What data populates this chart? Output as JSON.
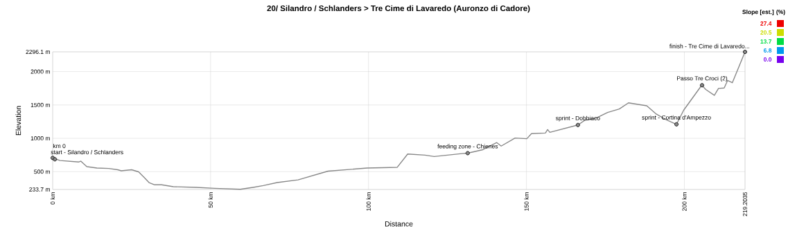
{
  "chart_data": {
    "type": "line",
    "title": "20/ Silandro / Schlanders > Tre Cime di Lavaredo (Auronzo di Cadore)",
    "xlabel": "Distance",
    "ylabel": "Elevation",
    "clabel": "Slope [est.] (%)",
    "clim": [
      0,
      27.4
    ],
    "cticks": [
      {
        "value": 0,
        "label": "0.0"
      },
      {
        "value": 6.8,
        "label": "6.8"
      },
      {
        "value": 13.7,
        "label": "13.7"
      },
      {
        "value": 20.5,
        "label": "20.5"
      },
      {
        "value": 27.4,
        "label": "27.4"
      }
    ],
    "xlim": [
      0,
      219.2035
    ],
    "ylim": [
      233.7,
      2296.1
    ],
    "xticks": [
      {
        "value": 0,
        "label": "0 km"
      },
      {
        "value": 50,
        "label": "50 km"
      },
      {
        "value": 100,
        "label": "100 km"
      },
      {
        "value": 150,
        "label": "150 km"
      },
      {
        "value": 200,
        "label": "200 km"
      },
      219.2035
    ],
    "yticks": [
      {
        "value": 233.7,
        "label": "233.7 m"
      },
      {
        "value": 500,
        "label": "500 m"
      },
      {
        "value": 1000,
        "label": "1000 m"
      },
      {
        "value": 1500,
        "label": "1500 m"
      },
      {
        "value": 2000,
        "label": "2000 m"
      },
      {
        "value": 2296.1,
        "label": "2296.1 m"
      }
    ],
    "grid": true,
    "series": [
      {
        "color": "#888888",
        "marker": "none",
        "x": [
          0,
          2.3,
          8.2,
          8.9,
          10.8,
          14.0,
          17.7,
          20.6,
          21.7,
          25.0,
          27.2,
          29.0,
          30.5,
          32.3,
          34.5,
          38.2,
          45.5,
          51.3,
          59.4,
          63.8,
          66.7,
          71.1,
          77.7,
          87.2,
          99.6,
          109.1,
          112.4,
          117.9,
          120.8,
          129.6,
          131.4,
          136.2,
          140.6,
          142.0,
          146.4,
          150.1,
          151.6,
          156.0,
          156.7,
          157.4,
          166.3,
          168.4,
          172.0,
          175.7,
          179.4,
          182.3,
          188.1,
          191.1,
          194.0,
          197.5,
          199.8,
          205.5,
          206.8,
          209.5,
          210.8,
          212.6,
          213.7,
          215.2,
          219.2035
        ],
        "values": [
          705,
          668,
          645,
          658,
          576,
          555,
          549,
          529,
          514,
          529,
          498,
          412,
          337,
          303,
          303,
          275,
          265,
          251,
          236,
          268,
          292,
          337,
          378,
          508,
          555,
          566,
          765,
          748,
          727,
          771,
          778,
          830,
          936,
          884,
          1004,
          994,
          1070,
          1080,
          1131,
          1090,
          1200,
          1269,
          1303,
          1388,
          1439,
          1532,
          1488,
          1364,
          1285,
          1210,
          1423,
          1796,
          1731,
          1645,
          1748,
          1755,
          1868,
          1834,
          2296.1
        ]
      },
      {
        "type": "scatter",
        "color": "#888888",
        "marker": "circle",
        "x": [
          0,
          0.7,
          131.4,
          166.3,
          197.5,
          205.6,
          219.2035
        ],
        "values": [
          707,
          686,
          778,
          1200,
          1210,
          1796,
          2296.1
        ]
      }
    ],
    "annotations": [
      {
        "text": "start - Silandro / Schlanders",
        "x": 0,
        "y": 707
      },
      {
        "text": "km 0",
        "x": 0.7,
        "y": 686
      },
      {
        "text": "feeding zone - Chienes",
        "x": 131.4,
        "y": 778
      },
      {
        "text": "sprint - Dobbiaco",
        "x": 166.3,
        "y": 1200
      },
      {
        "text": "sprint - Cortina d'Ampezzo",
        "x": 197.5,
        "y": 1210
      },
      {
        "text": "Passo Tre Croci (2)",
        "x": 205.6,
        "y": 1796
      },
      {
        "text": "finish - Tre Cime di Lavaredo...",
        "x": 219.2035,
        "y": 2296.1
      }
    ]
  }
}
